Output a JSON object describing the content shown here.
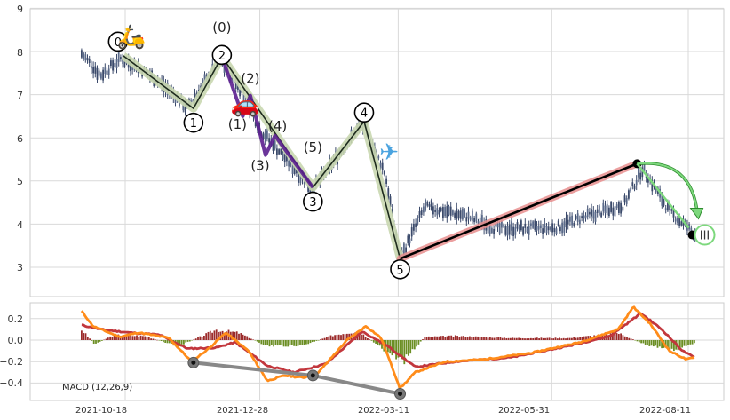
{
  "chart_data": [
    {
      "type": "candlestick",
      "title": "",
      "ylim": [
        2.3,
        9
      ],
      "yticks": [
        "3",
        "4",
        "5",
        "6",
        "7",
        "8",
        "9"
      ],
      "grid": true,
      "x_dates": [
        "2021-10-18",
        "2021-12-28",
        "2022-03-11",
        "2022-05-31",
        "2022-08-11"
      ],
      "price_anchors": [
        {
          "date": "2021-09-25",
          "value": 7.95
        },
        {
          "date": "2021-10-05",
          "value": 7.45
        },
        {
          "date": "2021-10-16",
          "value": 7.85
        },
        {
          "date": "2021-11-02",
          "value": 7.4
        },
        {
          "date": "2021-11-20",
          "value": 6.7
        },
        {
          "date": "2021-12-07",
          "value": 7.8
        },
        {
          "date": "2021-12-18",
          "value": 7.1
        },
        {
          "date": "2021-12-28",
          "value": 6.2
        },
        {
          "date": "2022-01-25",
          "value": 4.8
        },
        {
          "date": "2022-02-20",
          "value": 6.35
        },
        {
          "date": "2022-03-04",
          "value": 5.2
        },
        {
          "date": "2022-03-12",
          "value": 3.2
        },
        {
          "date": "2022-03-25",
          "value": 4.4
        },
        {
          "date": "2022-04-15",
          "value": 4.2
        },
        {
          "date": "2022-05-01",
          "value": 3.9
        },
        {
          "date": "2022-06-01",
          "value": 3.9
        },
        {
          "date": "2022-06-20",
          "value": 4.2
        },
        {
          "date": "2022-07-08",
          "value": 4.45
        },
        {
          "date": "2022-07-18",
          "value": 5.3
        },
        {
          "date": "2022-08-01",
          "value": 4.3
        },
        {
          "date": "2022-08-15",
          "value": 3.75
        }
      ],
      "waves_primary": [
        {
          "label": "0",
          "date": "2021-10-17",
          "value": 7.9
        },
        {
          "label": "1",
          "date": "2021-11-23",
          "value": 6.68
        },
        {
          "label": "2",
          "date": "2021-12-08",
          "value": 7.88
        },
        {
          "label": "3",
          "date": "2022-01-25",
          "value": 4.85
        },
        {
          "label": "4",
          "date": "2022-02-21",
          "value": 6.38
        },
        {
          "label": "5",
          "date": "2022-03-12",
          "value": 3.2
        }
      ],
      "waves_secondary": [
        {
          "label": "(0)",
          "date": "2021-12-08",
          "value": 7.88
        },
        {
          "label": "(1)",
          "date": "2021-12-19",
          "value": 6.5
        },
        {
          "label": "(2)",
          "date": "2021-12-23",
          "value": 6.98
        },
        {
          "label": "(3)",
          "date": "2021-12-31",
          "value": 5.6
        },
        {
          "label": "(4)",
          "date": "2022-01-05",
          "value": 6.05
        },
        {
          "label": "(5)",
          "date": "2022-01-25",
          "value": 4.85
        }
      ],
      "trend_line": [
        {
          "date": "2022-03-12",
          "value": 3.2
        },
        {
          "date": "2022-07-15",
          "value": 5.4
        }
      ],
      "projection": {
        "label": "III",
        "date": "2022-08-15",
        "value": 3.75
      },
      "icons": [
        "scooter-icon",
        "car-icon",
        "airplane-icon"
      ],
      "colors": {
        "candle": "#3b4a6b",
        "primary_wave": "#c9d7b0",
        "secondary_wave": "#5b1f8f",
        "trend": "#e88f8f",
        "arrow": "#7dd87d"
      }
    },
    {
      "type": "bar+line",
      "label": "MACD (12,26,9)",
      "ylim": [
        -0.55,
        0.38
      ],
      "yticks": [
        "0.2",
        "0.0",
        "−0.2",
        "−0.4"
      ],
      "grid": true,
      "hist_anchors": [
        {
          "date": "2021-09-25",
          "value": 0.1
        },
        {
          "date": "2021-10-02",
          "value": -0.04
        },
        {
          "date": "2021-10-12",
          "value": 0.05
        },
        {
          "date": "2021-10-28",
          "value": 0.04
        },
        {
          "date": "2021-11-15",
          "value": -0.06
        },
        {
          "date": "2021-12-05",
          "value": 0.1
        },
        {
          "date": "2021-12-17",
          "value": 0.07
        },
        {
          "date": "2022-01-01",
          "value": -0.06
        },
        {
          "date": "2022-01-20",
          "value": -0.05
        },
        {
          "date": "2022-02-05",
          "value": 0.05
        },
        {
          "date": "2022-02-18",
          "value": 0.09
        },
        {
          "date": "2022-03-05",
          "value": -0.12
        },
        {
          "date": "2022-03-14",
          "value": -0.2
        },
        {
          "date": "2022-03-25",
          "value": 0.03
        },
        {
          "date": "2022-04-10",
          "value": 0.04
        },
        {
          "date": "2022-05-10",
          "value": 0.02
        },
        {
          "date": "2022-06-10",
          "value": 0.02
        },
        {
          "date": "2022-07-05",
          "value": 0.07
        },
        {
          "date": "2022-07-20",
          "value": -0.05
        },
        {
          "date": "2022-08-05",
          "value": -0.1
        },
        {
          "date": "2022-08-15",
          "value": -0.02
        }
      ],
      "macd_line": [
        {
          "date": "2021-09-25",
          "value": 0.27
        },
        {
          "date": "2021-10-01",
          "value": 0.13
        },
        {
          "date": "2021-10-15",
          "value": 0.03
        },
        {
          "date": "2021-10-25",
          "value": 0.07
        },
        {
          "date": "2021-11-10",
          "value": 0.02
        },
        {
          "date": "2021-11-22",
          "value": -0.2
        },
        {
          "date": "2021-12-01",
          "value": -0.08
        },
        {
          "date": "2021-12-10",
          "value": 0.07
        },
        {
          "date": "2021-12-22",
          "value": -0.1
        },
        {
          "date": "2022-01-01",
          "value": -0.38
        },
        {
          "date": "2022-01-10",
          "value": -0.33
        },
        {
          "date": "2022-01-20",
          "value": -0.35
        },
        {
          "date": "2022-01-28",
          "value": -0.3
        },
        {
          "date": "2022-02-12",
          "value": 0.0
        },
        {
          "date": "2022-02-22",
          "value": 0.13
        },
        {
          "date": "2022-03-02",
          "value": 0.02
        },
        {
          "date": "2022-03-12",
          "value": -0.45
        },
        {
          "date": "2022-03-20",
          "value": -0.3
        },
        {
          "date": "2022-04-05",
          "value": -0.2
        },
        {
          "date": "2022-04-25",
          "value": -0.18
        },
        {
          "date": "2022-05-20",
          "value": -0.12
        },
        {
          "date": "2022-06-15",
          "value": -0.02
        },
        {
          "date": "2022-07-05",
          "value": 0.1
        },
        {
          "date": "2022-07-13",
          "value": 0.31
        },
        {
          "date": "2022-07-22",
          "value": 0.15
        },
        {
          "date": "2022-08-01",
          "value": -0.1
        },
        {
          "date": "2022-08-10",
          "value": -0.18
        },
        {
          "date": "2022-08-15",
          "value": -0.16
        }
      ],
      "signal_line": [
        {
          "date": "2021-09-25",
          "value": 0.14
        },
        {
          "date": "2021-10-05",
          "value": 0.1
        },
        {
          "date": "2021-10-20",
          "value": 0.07
        },
        {
          "date": "2021-11-05",
          "value": 0.05
        },
        {
          "date": "2021-11-20",
          "value": -0.08
        },
        {
          "date": "2021-12-05",
          "value": -0.07
        },
        {
          "date": "2021-12-15",
          "value": -0.02
        },
        {
          "date": "2022-01-01",
          "value": -0.24
        },
        {
          "date": "2022-01-15",
          "value": -0.3
        },
        {
          "date": "2022-02-01",
          "value": -0.22
        },
        {
          "date": "2022-02-20",
          "value": 0.08
        },
        {
          "date": "2022-03-05",
          "value": -0.05
        },
        {
          "date": "2022-03-20",
          "value": -0.25
        },
        {
          "date": "2022-04-10",
          "value": -0.2
        },
        {
          "date": "2022-05-10",
          "value": -0.16
        },
        {
          "date": "2022-06-10",
          "value": -0.05
        },
        {
          "date": "2022-07-01",
          "value": 0.04
        },
        {
          "date": "2022-07-17",
          "value": 0.25
        },
        {
          "date": "2022-07-28",
          "value": 0.1
        },
        {
          "date": "2022-08-08",
          "value": -0.1
        },
        {
          "date": "2022-08-15",
          "value": -0.17
        }
      ],
      "divergence_line": [
        {
          "date": "2021-11-23",
          "value": -0.21
        },
        {
          "date": "2022-01-25",
          "value": -0.33
        },
        {
          "date": "2022-03-12",
          "value": -0.5
        }
      ],
      "colors": {
        "hist_pos": "#9b2a2a",
        "hist_neg": "#6b8e23",
        "macd": "#ff8c1a",
        "signal": "#c2373d",
        "divergence": "#888888"
      }
    }
  ]
}
